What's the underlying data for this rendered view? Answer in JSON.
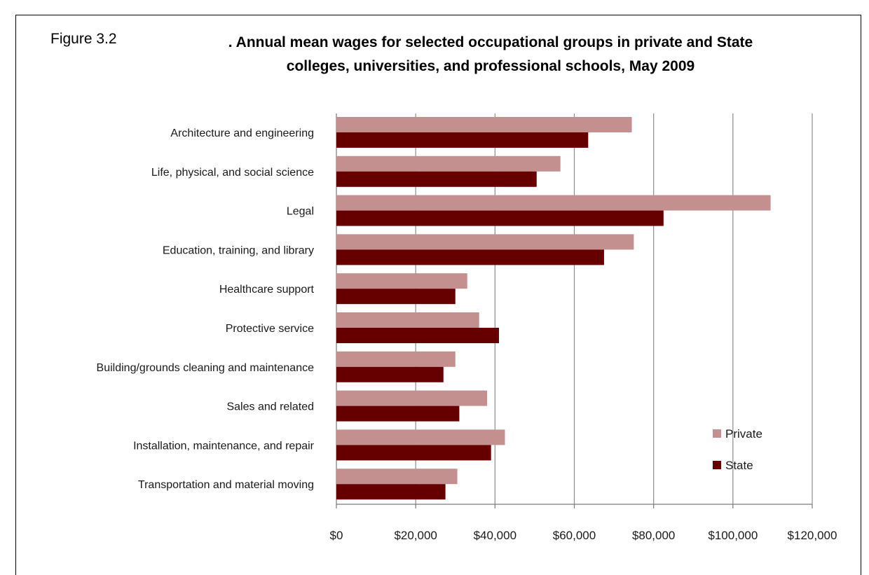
{
  "figure_label": "Figure 3.2",
  "title_line1": ". Annual mean wages for selected occupational groups in private and State",
  "title_line2": "colleges, universities, and professional schools, May 2009",
  "chart_data": {
    "type": "bar",
    "orientation": "horizontal",
    "categories": [
      "Architecture and engineering",
      "Life, physical, and social science",
      "Legal",
      "Education, training, and library",
      "Healthcare support",
      "Protective service",
      "Building/grounds cleaning and maintenance",
      "Sales and related",
      "Installation, maintenance, and repair",
      "Transportation and material moving"
    ],
    "series": [
      {
        "name": "Private",
        "color": "#c48f8f",
        "values": [
          74500,
          56500,
          109500,
          75000,
          33000,
          36000,
          30000,
          38000,
          42500,
          30500
        ]
      },
      {
        "name": "State",
        "color": "#660000",
        "values": [
          63500,
          50500,
          82500,
          67500,
          30000,
          41000,
          27000,
          31000,
          39000,
          27500
        ]
      }
    ],
    "xlim": [
      0,
      120000
    ],
    "xticks": [
      0,
      20000,
      40000,
      60000,
      80000,
      100000,
      120000
    ],
    "xtick_labels": [
      "$0",
      "$20,000",
      "$40,000",
      "$60,000",
      "$80,000",
      "$100,000",
      "$120,000"
    ],
    "grid": "vertical",
    "legend_position": "bottom-right",
    "gridline_color": "#8c8c8c"
  }
}
